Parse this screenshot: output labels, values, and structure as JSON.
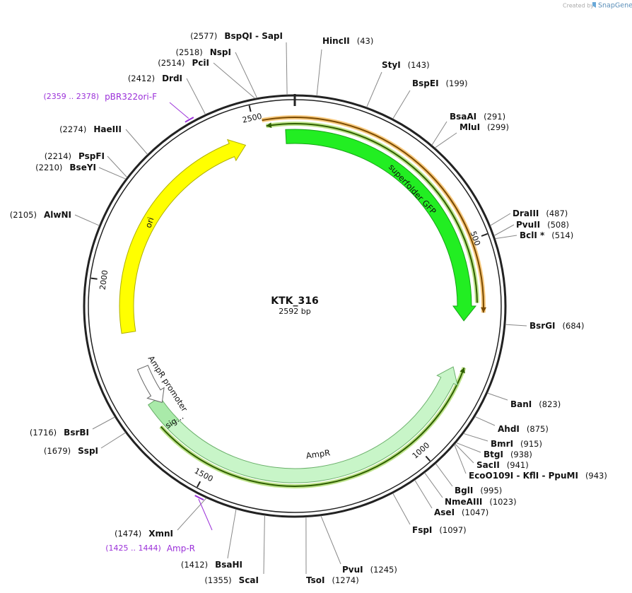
{
  "header": {
    "credit": "Created by",
    "brand": "SnapGene"
  },
  "map": {
    "name": "KTK_316",
    "length": {
      "value": 2592,
      "label": "2592 bp"
    },
    "ticks": [
      500,
      1000,
      1500,
      2000,
      2500
    ],
    "enzymes": [
      {
        "name": "HincII",
        "site": {
          "value": 43,
          "label": "(43)"
        }
      },
      {
        "name": "StyI",
        "site": {
          "value": 143,
          "label": "(143)"
        }
      },
      {
        "name": "BspEI",
        "site": {
          "value": 199,
          "label": "(199)"
        }
      },
      {
        "name": "BsaAI",
        "site": {
          "value": 291,
          "label": "(291)"
        }
      },
      {
        "name": "MluI",
        "site": {
          "value": 299,
          "label": "(299)"
        }
      },
      {
        "name": "DraIII",
        "site": {
          "value": 487,
          "label": "(487)"
        }
      },
      {
        "name": "PvuII",
        "site": {
          "value": 508,
          "label": "(508)"
        }
      },
      {
        "name": "BclI *",
        "site": {
          "value": 514,
          "label": "(514)"
        }
      },
      {
        "name": "BsrGI",
        "site": {
          "value": 684,
          "label": "(684)"
        }
      },
      {
        "name": "BanI",
        "site": {
          "value": 823,
          "label": "(823)"
        }
      },
      {
        "name": "AhdI",
        "site": {
          "value": 875,
          "label": "(875)"
        }
      },
      {
        "name": "BmrI",
        "site": {
          "value": 915,
          "label": "(915)"
        }
      },
      {
        "name": "BtgI",
        "site": {
          "value": 938,
          "label": "(938)"
        }
      },
      {
        "name": "SacII",
        "site": {
          "value": 941,
          "label": "(941)"
        }
      },
      {
        "name": "EcoO109I - KflI - PpuMI",
        "site": {
          "value": 943,
          "label": "(943)"
        }
      },
      {
        "name": "BglI",
        "site": {
          "value": 995,
          "label": "(995)"
        }
      },
      {
        "name": "NmeAIII",
        "site": {
          "value": 1023,
          "label": "(1023)"
        }
      },
      {
        "name": "AseI",
        "site": {
          "value": 1047,
          "label": "(1047)"
        }
      },
      {
        "name": "FspI",
        "site": {
          "value": 1097,
          "label": "(1097)"
        }
      },
      {
        "name": "PvuI",
        "site": {
          "value": 1245,
          "label": "(1245)"
        }
      },
      {
        "name": "TsoI",
        "site": {
          "value": 1274,
          "label": "(1274)"
        }
      },
      {
        "name": "ScaI",
        "site": {
          "value": 1355,
          "label": "(1355)"
        }
      },
      {
        "name": "BsaHI",
        "site": {
          "value": 1412,
          "label": "(1412)"
        }
      },
      {
        "name": "XmnI",
        "site": {
          "value": 1474,
          "label": "(1474)"
        }
      },
      {
        "name": "SspI",
        "site": {
          "value": 1679,
          "label": "(1679)"
        }
      },
      {
        "name": "BsrBI",
        "site": {
          "value": 1716,
          "label": "(1716)"
        }
      },
      {
        "name": "AlwNI",
        "site": {
          "value": 2105,
          "label": "(2105)"
        }
      },
      {
        "name": "BseYI",
        "site": {
          "value": 2210,
          "label": "(2210)"
        }
      },
      {
        "name": "PspFI",
        "site": {
          "value": 2214,
          "label": "(2214)"
        }
      },
      {
        "name": "HaeIII",
        "site": {
          "value": 2274,
          "label": "(2274)"
        }
      },
      {
        "name": "DrdI",
        "site": {
          "value": 2412,
          "label": "(2412)"
        }
      },
      {
        "name": "PciI",
        "site": {
          "value": 2514,
          "label": "(2514)"
        }
      },
      {
        "name": "NspI",
        "site": {
          "value": 2518,
          "label": "(2518)"
        }
      },
      {
        "name": "BspQI - SapI",
        "site": {
          "value": 2577,
          "label": "(2577)"
        }
      }
    ],
    "features": [
      {
        "name": "superfolder GFP"
      },
      {
        "name": "ori"
      },
      {
        "name": "AmpR"
      },
      {
        "name": "AmpR promoter"
      },
      {
        "name": "sig…"
      }
    ],
    "primers": [
      {
        "name": "pBR322ori-F",
        "range": "(2359 .. 2378)"
      },
      {
        "name": "Amp-R",
        "range": "(1425 .. 1444)"
      }
    ]
  }
}
